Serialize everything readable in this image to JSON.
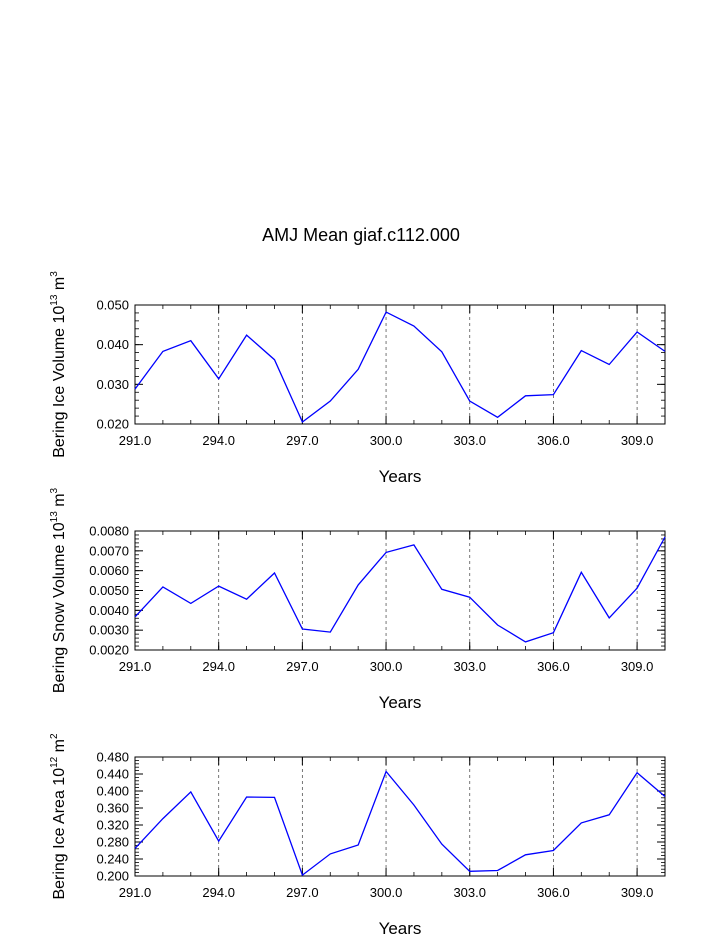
{
  "title": "AMJ Mean giaf.c112.000",
  "colors": {
    "line": "#0000ff",
    "axis": "#000000",
    "grid": "#555555"
  },
  "chart_data": [
    {
      "type": "line",
      "xlabel": "Years",
      "ylabel_base": "Bering Ice Volume 10",
      "ylabel_exp1": "13",
      "ylabel_mid": " m",
      "ylabel_exp2": "3",
      "xlim": [
        291,
        310
      ],
      "ylim": [
        0.02,
        0.05
      ],
      "xticks": [
        291,
        294,
        297,
        300,
        303,
        306,
        309
      ],
      "xtick_labels": [
        "291.0",
        "294.0",
        "297.0",
        "300.0",
        "303.0",
        "306.0",
        "309.0"
      ],
      "yticks": [
        0.02,
        0.03,
        0.04,
        0.05
      ],
      "ytick_labels": [
        "0.020",
        "0.030",
        "0.040",
        "0.050"
      ],
      "grid": "vertical dashed at x ticks",
      "x": [
        291,
        292,
        293,
        294,
        295,
        296,
        297,
        298,
        299,
        300,
        301,
        302,
        303,
        304,
        305,
        306,
        307,
        308,
        309,
        310
      ],
      "values": [
        0.0288,
        0.0383,
        0.041,
        0.0314,
        0.0424,
        0.0362,
        0.0205,
        0.0258,
        0.0338,
        0.0482,
        0.0447,
        0.0382,
        0.0258,
        0.0217,
        0.0271,
        0.0274,
        0.0385,
        0.035,
        0.0432,
        0.0383
      ]
    },
    {
      "type": "line",
      "xlabel": "Years",
      "ylabel_base": "Bering Snow Volume 10",
      "ylabel_exp1": "13",
      "ylabel_mid": " m",
      "ylabel_exp2": "3",
      "xlim": [
        291,
        310
      ],
      "ylim": [
        0.002,
        0.008
      ],
      "xticks": [
        291,
        294,
        297,
        300,
        303,
        306,
        309
      ],
      "xtick_labels": [
        "291.0",
        "294.0",
        "297.0",
        "300.0",
        "303.0",
        "306.0",
        "309.0"
      ],
      "yticks": [
        0.002,
        0.003,
        0.004,
        0.005,
        0.006,
        0.007,
        0.008
      ],
      "ytick_labels": [
        "0.0020",
        "0.0030",
        "0.0040",
        "0.0050",
        "0.0060",
        "0.0070",
        "0.0080"
      ],
      "grid": "vertical dashed at x ticks",
      "x": [
        291,
        292,
        293,
        294,
        295,
        296,
        297,
        298,
        299,
        300,
        301,
        302,
        303,
        304,
        305,
        306,
        307,
        308,
        309,
        310
      ],
      "values": [
        0.00367,
        0.00518,
        0.00435,
        0.00522,
        0.00456,
        0.00588,
        0.00306,
        0.0029,
        0.00528,
        0.00692,
        0.0073,
        0.00506,
        0.00466,
        0.00326,
        0.00241,
        0.00287,
        0.00592,
        0.00362,
        0.00512,
        0.0077
      ]
    },
    {
      "type": "line",
      "xlabel": "Years",
      "ylabel_base": "Bering Ice Area 10",
      "ylabel_exp1": "12",
      "ylabel_mid": " m",
      "ylabel_exp2": "2",
      "xlim": [
        291,
        310
      ],
      "ylim": [
        0.2,
        0.48
      ],
      "xticks": [
        291,
        294,
        297,
        300,
        303,
        306,
        309
      ],
      "xtick_labels": [
        "291.0",
        "294.0",
        "297.0",
        "300.0",
        "303.0",
        "306.0",
        "309.0"
      ],
      "yticks": [
        0.2,
        0.24,
        0.28,
        0.32,
        0.36,
        0.4,
        0.44,
        0.48
      ],
      "ytick_labels": [
        "0.200",
        "0.240",
        "0.280",
        "0.320",
        "0.360",
        "0.400",
        "0.440",
        "0.480"
      ],
      "grid": "vertical dashed at x ticks",
      "x": [
        291,
        292,
        293,
        294,
        295,
        296,
        297,
        298,
        299,
        300,
        301,
        302,
        303,
        304,
        305,
        306,
        307,
        308,
        309,
        310
      ],
      "values": [
        0.265,
        0.335,
        0.398,
        0.282,
        0.386,
        0.385,
        0.202,
        0.252,
        0.273,
        0.446,
        0.367,
        0.275,
        0.211,
        0.213,
        0.25,
        0.26,
        0.325,
        0.344,
        0.443,
        0.387
      ]
    }
  ]
}
